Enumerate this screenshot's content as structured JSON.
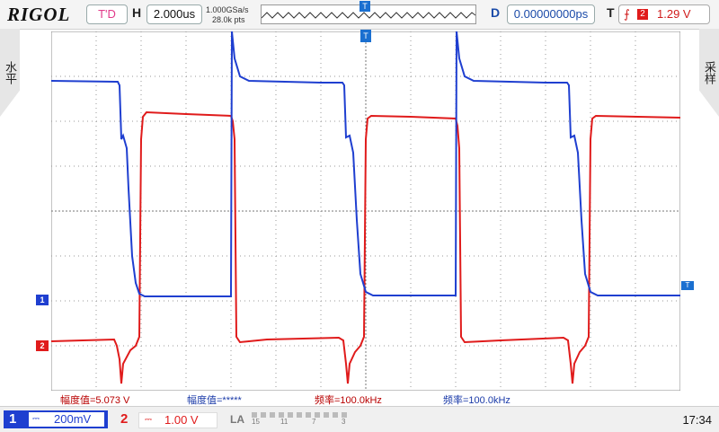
{
  "header": {
    "brand": "RIGOL",
    "run_state": "T'D",
    "horizontal_label": "H",
    "timebase": "2.000us",
    "sample_rate": "1.000GSa/s",
    "memory_depth": "28.0k pts",
    "delay_label": "D",
    "delay_value": "0.00000000ps",
    "trigger_label": "T",
    "trigger_channel": "2",
    "trigger_level": "1.29 V"
  },
  "side_tabs": {
    "left": "水平",
    "right": "采样"
  },
  "measurements": {
    "ch2_amplitude": "幅度值=5.073 V",
    "ch1_amplitude": "幅度值=*****",
    "ch2_frequency": "频率=100.0kHz",
    "ch1_frequency": "频率=100.0kHz"
  },
  "channels": [
    {
      "number": "1",
      "coupling": "⎓",
      "scale": "200mV",
      "color": "#1f3fd0"
    },
    {
      "number": "2",
      "coupling": "⎓",
      "scale": "1.00 V",
      "color": "#e01b1b"
    }
  ],
  "la": {
    "label": "LA",
    "ticks": [
      "15",
      "11",
      "7",
      "3"
    ]
  },
  "clock": "17:34",
  "colors": {
    "ch1": "#1f3fd0",
    "ch2": "#e01b1b",
    "accent": "#1a6fd0"
  }
}
